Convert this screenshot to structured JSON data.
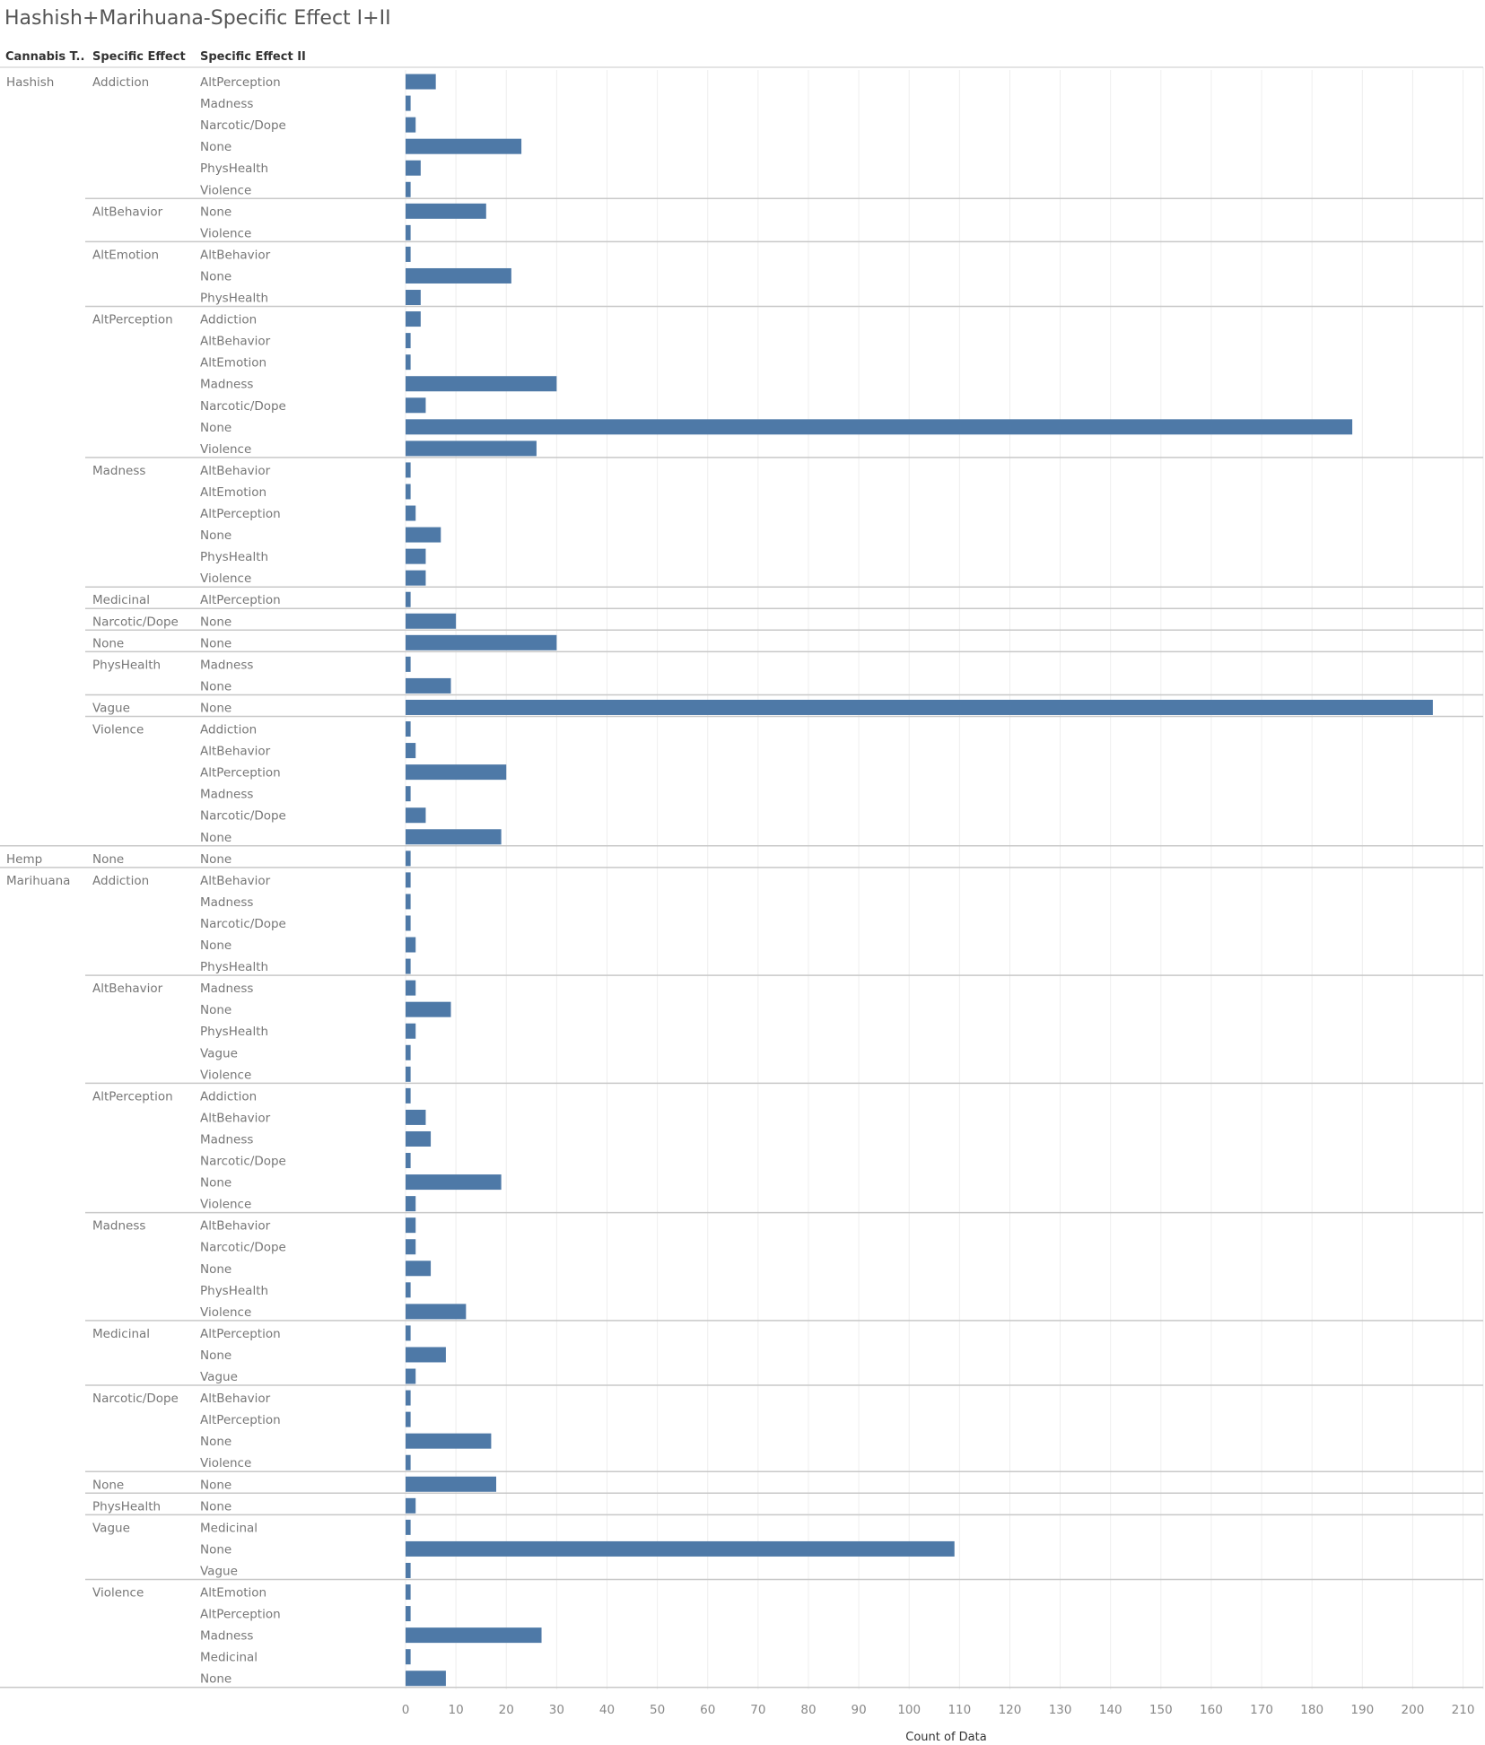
{
  "title": "Hashish+Marihuana-Specific Effect I+II",
  "headers": {
    "col1": "Cannabis T..",
    "col2": "Specific Effect",
    "col3": "Specific Effect II"
  },
  "colors": {
    "bar": "#4e79a7",
    "grid": "#eeeeee",
    "sep": "#c8c8c8"
  },
  "chart_data": {
    "type": "bar",
    "orientation": "horizontal",
    "title": "Hashish+Marihuana-Specific Effect I+II",
    "xlabel": "Count of Data",
    "xlim": [
      0,
      214
    ],
    "xticks": [
      0,
      10,
      20,
      30,
      40,
      50,
      60,
      70,
      80,
      90,
      100,
      110,
      120,
      130,
      140,
      150,
      160,
      170,
      180,
      190,
      200,
      210
    ],
    "grid": "vertical",
    "groups": [
      {
        "type": "Hashish",
        "effects": [
          {
            "effect": "Addiction",
            "rows": [
              [
                "AltPerception",
                6
              ],
              [
                "Madness",
                1
              ],
              [
                "Narcotic/Dope",
                2
              ],
              [
                "None",
                23
              ],
              [
                "PhysHealth",
                3
              ],
              [
                "Violence",
                1
              ]
            ]
          },
          {
            "effect": "AltBehavior",
            "rows": [
              [
                "None",
                16
              ],
              [
                "Violence",
                1
              ]
            ]
          },
          {
            "effect": "AltEmotion",
            "rows": [
              [
                "AltBehavior",
                1
              ],
              [
                "None",
                21
              ],
              [
                "PhysHealth",
                3
              ]
            ]
          },
          {
            "effect": "AltPerception",
            "rows": [
              [
                "Addiction",
                3
              ],
              [
                "AltBehavior",
                1
              ],
              [
                "AltEmotion",
                1
              ],
              [
                "Madness",
                30
              ],
              [
                "Narcotic/Dope",
                4
              ],
              [
                "None",
                188
              ],
              [
                "Violence",
                26
              ]
            ]
          },
          {
            "effect": "Madness",
            "rows": [
              [
                "AltBehavior",
                1
              ],
              [
                "AltEmotion",
                1
              ],
              [
                "AltPerception",
                2
              ],
              [
                "None",
                7
              ],
              [
                "PhysHealth",
                4
              ],
              [
                "Violence",
                4
              ]
            ]
          },
          {
            "effect": "Medicinal",
            "rows": [
              [
                "AltPerception",
                1
              ]
            ]
          },
          {
            "effect": "Narcotic/Dope",
            "rows": [
              [
                "None",
                10
              ]
            ]
          },
          {
            "effect": "None",
            "rows": [
              [
                "None",
                30
              ]
            ]
          },
          {
            "effect": "PhysHealth",
            "rows": [
              [
                "Madness",
                1
              ],
              [
                "None",
                9
              ]
            ]
          },
          {
            "effect": "Vague",
            "rows": [
              [
                "None",
                204
              ]
            ]
          },
          {
            "effect": "Violence",
            "rows": [
              [
                "Addiction",
                1
              ],
              [
                "AltBehavior",
                2
              ],
              [
                "AltPerception",
                20
              ],
              [
                "Madness",
                1
              ],
              [
                "Narcotic/Dope",
                4
              ],
              [
                "None",
                19
              ]
            ]
          }
        ]
      },
      {
        "type": "Hemp",
        "effects": [
          {
            "effect": "None",
            "rows": [
              [
                "None",
                1
              ]
            ]
          }
        ]
      },
      {
        "type": "Marihuana",
        "effects": [
          {
            "effect": "Addiction",
            "rows": [
              [
                "AltBehavior",
                1
              ],
              [
                "Madness",
                1
              ],
              [
                "Narcotic/Dope",
                1
              ],
              [
                "None",
                2
              ],
              [
                "PhysHealth",
                1
              ]
            ]
          },
          {
            "effect": "AltBehavior",
            "rows": [
              [
                "Madness",
                2
              ],
              [
                "None",
                9
              ],
              [
                "PhysHealth",
                2
              ],
              [
                "Vague",
                1
              ],
              [
                "Violence",
                1
              ]
            ]
          },
          {
            "effect": "AltPerception",
            "rows": [
              [
                "Addiction",
                1
              ],
              [
                "AltBehavior",
                4
              ],
              [
                "Madness",
                5
              ],
              [
                "Narcotic/Dope",
                1
              ],
              [
                "None",
                19
              ],
              [
                "Violence",
                2
              ]
            ]
          },
          {
            "effect": "Madness",
            "rows": [
              [
                "AltBehavior",
                2
              ],
              [
                "Narcotic/Dope",
                2
              ],
              [
                "None",
                5
              ],
              [
                "PhysHealth",
                1
              ],
              [
                "Violence",
                12
              ]
            ]
          },
          {
            "effect": "Medicinal",
            "rows": [
              [
                "AltPerception",
                1
              ],
              [
                "None",
                8
              ],
              [
                "Vague",
                2
              ]
            ]
          },
          {
            "effect": "Narcotic/Dope",
            "rows": [
              [
                "AltBehavior",
                1
              ],
              [
                "AltPerception",
                1
              ],
              [
                "None",
                17
              ],
              [
                "Violence",
                1
              ]
            ]
          },
          {
            "effect": "None",
            "rows": [
              [
                "None",
                18
              ]
            ]
          },
          {
            "effect": "PhysHealth",
            "rows": [
              [
                "None",
                2
              ]
            ]
          },
          {
            "effect": "Vague",
            "rows": [
              [
                "Medicinal",
                1
              ],
              [
                "None",
                109
              ],
              [
                "Vague",
                1
              ]
            ]
          },
          {
            "effect": "Violence",
            "rows": [
              [
                "AltEmotion",
                1
              ],
              [
                "AltPerception",
                1
              ],
              [
                "Madness",
                27
              ],
              [
                "Medicinal",
                1
              ],
              [
                "None",
                8
              ]
            ]
          }
        ]
      }
    ]
  }
}
